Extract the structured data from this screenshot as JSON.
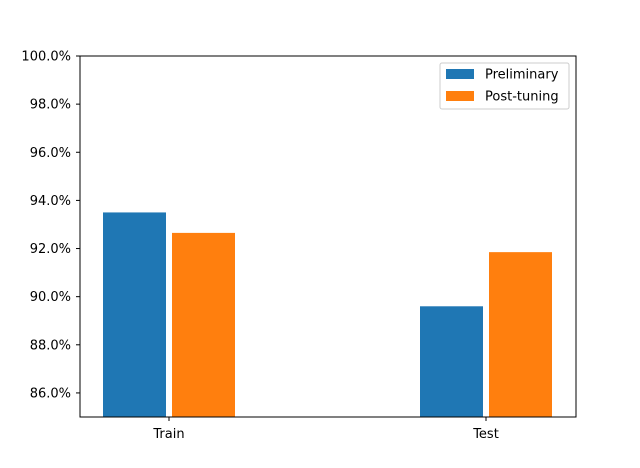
{
  "chart_data": {
    "type": "bar",
    "categories": [
      "Train",
      "Test"
    ],
    "series": [
      {
        "name": "Preliminary",
        "values": [
          93.5,
          89.6
        ],
        "color": "#1f77b4"
      },
      {
        "name": "Post-tuning",
        "values": [
          92.65,
          91.85
        ],
        "color": "#ff7f0e"
      }
    ],
    "ylim": [
      85.0,
      100.0
    ],
    "yticks": [
      86.0,
      88.0,
      90.0,
      92.0,
      94.0,
      96.0,
      98.0,
      100.0
    ],
    "ytick_labels": [
      "86.0%",
      "88.0%",
      "90.0%",
      "92.0%",
      "94.0%",
      "96.0%",
      "98.0%",
      "100.0%"
    ],
    "title": "",
    "xlabel": "",
    "ylabel": "",
    "grid": false,
    "legend": "top-right"
  }
}
